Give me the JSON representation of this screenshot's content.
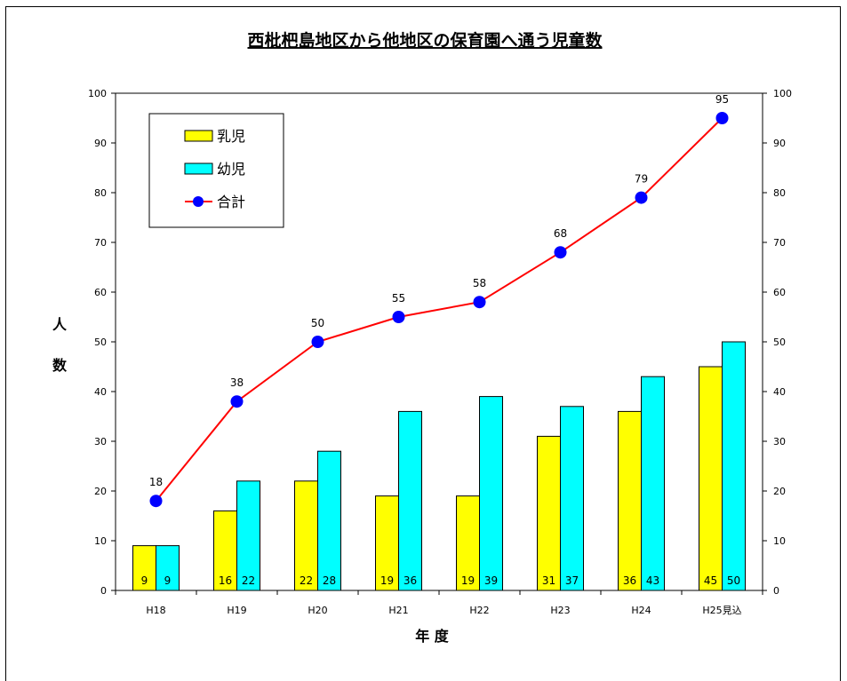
{
  "chart_data": {
    "type": "bar",
    "title": "西枇杷島地区から他地区の保育園へ通う児童数",
    "xlabel": "年 度",
    "ylabel_chars": [
      "人",
      "数"
    ],
    "categories": [
      "H18",
      "H19",
      "H20",
      "H21",
      "H22",
      "H23",
      "H24",
      "H25見込"
    ],
    "ylim": [
      0,
      100
    ],
    "yticks": [
      0,
      10,
      20,
      30,
      40,
      50,
      60,
      70,
      80,
      90,
      100
    ],
    "grid": false,
    "legend_position": "top-left",
    "series": [
      {
        "name": "乳児",
        "type": "bar",
        "color": "#ffff00",
        "values": [
          9,
          16,
          22,
          19,
          19,
          31,
          36,
          45
        ]
      },
      {
        "name": "幼児",
        "type": "bar",
        "color": "#00ffff",
        "values": [
          9,
          22,
          28,
          36,
          39,
          37,
          43,
          50
        ]
      },
      {
        "name": "合計",
        "type": "line",
        "color": "#ff0000",
        "marker_color": "#0000ff",
        "values": [
          18,
          38,
          50,
          55,
          58,
          68,
          79,
          95
        ]
      }
    ]
  }
}
